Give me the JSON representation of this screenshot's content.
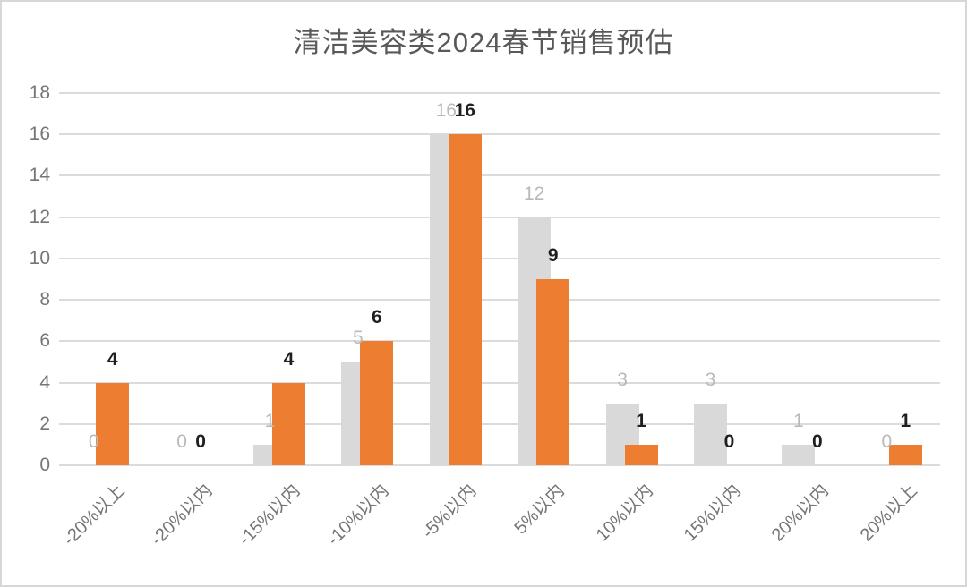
{
  "chart_data": {
    "type": "bar",
    "title": "清洁美容类2024春节销售预估",
    "categories": [
      "-20%以上",
      "-20%以内",
      "-15%以内",
      "-10%以内",
      "-5%以内",
      "5%以内",
      "10%以内",
      "15%以内",
      "20%以内",
      "20%以上"
    ],
    "series": [
      {
        "name": "gray-series",
        "values": [
          0,
          0,
          1,
          5,
          16,
          12,
          3,
          3,
          1,
          0
        ],
        "color": "#d9d9d9",
        "label_color": "#b9b9b9",
        "label_bold": false
      },
      {
        "name": "orange-series",
        "values": [
          4,
          0,
          4,
          6,
          16,
          9,
          1,
          0,
          0,
          1
        ],
        "color": "#ed7d31",
        "label_color": "#1f1f1f",
        "label_bold": true
      }
    ],
    "ylim": [
      0,
      18
    ],
    "yticks": [
      0,
      2,
      4,
      6,
      8,
      10,
      12,
      14,
      16,
      18
    ],
    "grid": true,
    "legend": "none",
    "data_labels": true,
    "colors": {
      "gridline": "#dbdbdb",
      "axis_label": "#767676",
      "title": "#595959",
      "border": "#d7d7d7",
      "background": "#ffffff"
    }
  }
}
